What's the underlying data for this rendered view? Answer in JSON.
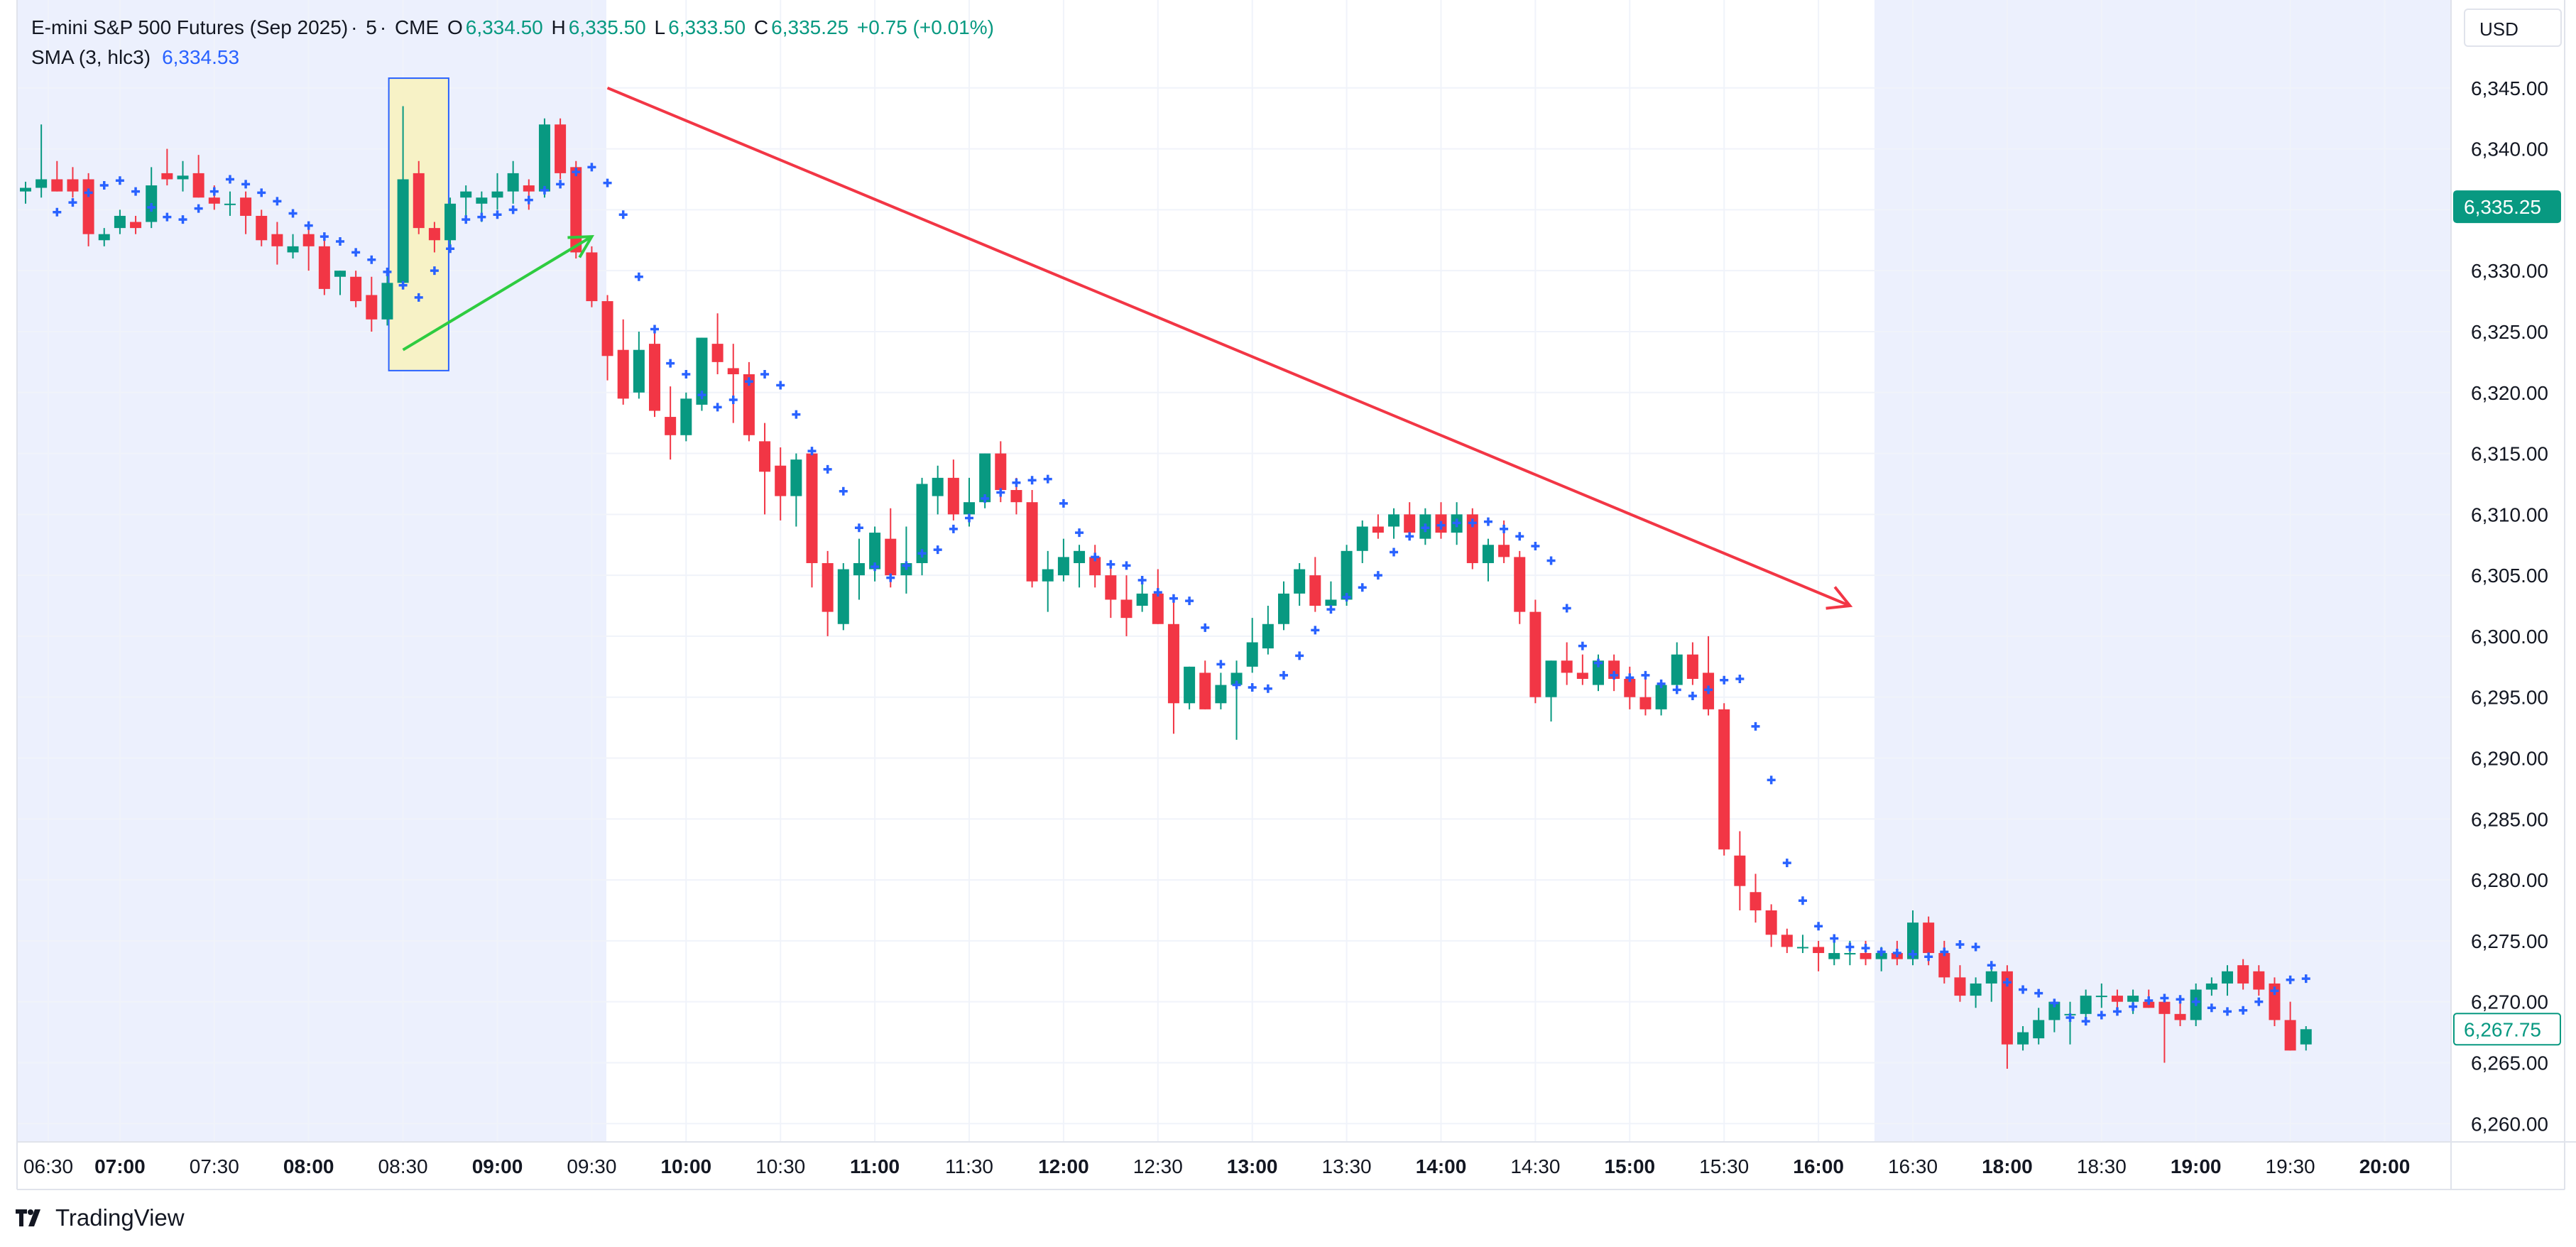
{
  "legend": {
    "symbol": "E-mini S&P 500 Futures (Sep 2025)",
    "interval": "5",
    "exchange": "CME",
    "open_label": "O",
    "open": "6,334.50",
    "high_label": "H",
    "high": "6,335.50",
    "low_label": "L",
    "low": "6,333.50",
    "close_label": "C",
    "close": "6,335.25",
    "change": "+0.75 (+0.01%)",
    "indicator": "SMA (3, hlc3)",
    "indicator_value": "6,334.53"
  },
  "currency": "USD",
  "brand": "TradingView",
  "colors": {
    "up": "#089981",
    "down": "#f23645",
    "sma": "#2962ff",
    "session_shade": "#ecf0fd",
    "box_fill": "#f7f2c6",
    "box_stroke": "#2962ff",
    "green_arrow": "#2ecc40",
    "red_arrow": "#f23645"
  },
  "price_tags": {
    "last": "6,335.25",
    "current": "6,267.75"
  },
  "chart_data": {
    "type": "candlestick",
    "y_axis": {
      "ticks": [
        "6,260.00",
        "6,265.00",
        "6,270.00",
        "6,275.00",
        "6,280.00",
        "6,285.00",
        "6,290.00",
        "6,295.00",
        "6,300.00",
        "6,305.00",
        "6,310.00",
        "6,315.00",
        "6,320.00",
        "6,325.00",
        "6,330.00",
        "6,335.00",
        "6,340.00",
        "6,345.00"
      ],
      "range": [
        6258.5,
        6350
      ]
    },
    "x_axis": {
      "ticks": [
        "06:30",
        "07:00",
        "07:30",
        "08:00",
        "08:30",
        "09:00",
        "09:30",
        "10:00",
        "10:30",
        "11:00",
        "11:30",
        "12:00",
        "12:30",
        "13:00",
        "13:30",
        "14:00",
        "14:30",
        "15:00",
        "15:30",
        "16:00",
        "16:30",
        "18:00",
        "18:30",
        "19:00",
        "19:30",
        "20:00"
      ],
      "bold": [
        "07:00",
        "08:00",
        "09:00",
        "10:00",
        "11:00",
        "12:00",
        "13:00",
        "14:00",
        "15:00",
        "16:00",
        "18:00",
        "19:00",
        "20:00"
      ]
    },
    "grid": true,
    "candles": [
      [
        6336.5,
        6337.3,
        6335.5,
        6336.8
      ],
      [
        6336.8,
        6342,
        6336,
        6337.5
      ],
      [
        6337.5,
        6339,
        6336.5,
        6336.5
      ],
      [
        6337.5,
        6338.5,
        6336,
        6336.5
      ],
      [
        6337.5,
        6338,
        6332,
        6333
      ],
      [
        6332.5,
        6333.5,
        6332,
        6333
      ],
      [
        6333.5,
        6335,
        6333,
        6334.5
      ],
      [
        6334,
        6334.5,
        6333,
        6333.5
      ],
      [
        6334,
        6338.5,
        6333.5,
        6337
      ],
      [
        6338,
        6340,
        6337,
        6337.5
      ],
      [
        6337.5,
        6339,
        6336.5,
        6337.8
      ],
      [
        6338,
        6339.5,
        6336,
        6336
      ],
      [
        6336,
        6337,
        6335,
        6335.5
      ],
      [
        6335.5,
        6336.5,
        6334.5,
        6335.5
      ],
      [
        6336,
        6336.5,
        6333,
        6334.5
      ],
      [
        6334.5,
        6335,
        6332,
        6332.5
      ],
      [
        6333,
        6334,
        6330.5,
        6332
      ],
      [
        6331.5,
        6333,
        6331,
        6332
      ],
      [
        6333,
        6334,
        6330,
        6332
      ],
      [
        6332,
        6332.5,
        6328,
        6328.5
      ],
      [
        6329.5,
        6330,
        6328,
        6330
      ],
      [
        6329.5,
        6330,
        6327,
        6327.5
      ],
      [
        6328,
        6329.5,
        6325,
        6326
      ],
      [
        6326,
        6330,
        6325.5,
        6329
      ],
      [
        6329,
        6343.5,
        6328.5,
        6337.5
      ],
      [
        6338,
        6339,
        6333,
        6333.5
      ],
      [
        6333.5,
        6334,
        6331.5,
        6332.5
      ],
      [
        6332.5,
        6336,
        6332,
        6335.5
      ],
      [
        6336,
        6337,
        6334.5,
        6336.5
      ],
      [
        6335.5,
        6336.5,
        6334,
        6336
      ],
      [
        6336,
        6338,
        6335,
        6336.5
      ],
      [
        6336.5,
        6339,
        6335.5,
        6338
      ],
      [
        6337,
        6337.5,
        6335,
        6336.5
      ],
      [
        6336.5,
        6342.5,
        6336,
        6342
      ],
      [
        6342,
        6342.5,
        6337.5,
        6338
      ],
      [
        6338.5,
        6339,
        6331,
        6331.5
      ],
      [
        6331.5,
        6332,
        6327,
        6327.5
      ],
      [
        6327.5,
        6328,
        6321,
        6323
      ],
      [
        6323.5,
        6326,
        6319,
        6319.5
      ],
      [
        6320,
        6325,
        6319.5,
        6323.5
      ],
      [
        6324,
        6325.5,
        6318,
        6318.5
      ],
      [
        6318,
        6320.5,
        6314.5,
        6316.5
      ],
      [
        6316.5,
        6320,
        6316,
        6319.5
      ],
      [
        6319,
        6324.5,
        6318.5,
        6324.5
      ],
      [
        6324,
        6326.5,
        6321.5,
        6322.5
      ],
      [
        6322,
        6324,
        6317.5,
        6321.5
      ],
      [
        6321.5,
        6322.5,
        6316,
        6316.5
      ],
      [
        6316,
        6317.5,
        6310,
        6313.5
      ],
      [
        6314,
        6315.5,
        6309.5,
        6311.5
      ],
      [
        6311.5,
        6315,
        6309,
        6314.5
      ],
      [
        6315,
        6315.5,
        6304,
        6306
      ],
      [
        6306,
        6307,
        6300,
        6302
      ],
      [
        6301,
        6306,
        6300.5,
        6305.5
      ],
      [
        6305,
        6308,
        6303,
        6306
      ],
      [
        6305.5,
        6309,
        6304.5,
        6308.5
      ],
      [
        6308,
        6310.5,
        6304,
        6305
      ],
      [
        6305,
        6309,
        6303.5,
        6306
      ],
      [
        6306,
        6313,
        6305,
        6312.5
      ],
      [
        6311.5,
        6314,
        6310,
        6313
      ],
      [
        6313,
        6314.5,
        6309.5,
        6310
      ],
      [
        6310,
        6313,
        6309,
        6311
      ],
      [
        6311,
        6315,
        6310.5,
        6315
      ],
      [
        6315,
        6316,
        6311,
        6312
      ],
      [
        6312,
        6313,
        6310,
        6311
      ],
      [
        6311,
        6312,
        6304,
        6304.5
      ],
      [
        6304.5,
        6307,
        6302,
        6305.5
      ],
      [
        6305,
        6308,
        6304.5,
        6306.5
      ],
      [
        6306,
        6307.5,
        6304,
        6307
      ],
      [
        6306.5,
        6307.5,
        6304,
        6305
      ],
      [
        6305,
        6306,
        6301.5,
        6303
      ],
      [
        6303,
        6305,
        6300,
        6301.5
      ],
      [
        6302.5,
        6304.5,
        6302,
        6303.5
      ],
      [
        6303.5,
        6305.5,
        6301,
        6301
      ],
      [
        6301,
        6303,
        6292,
        6294.5
      ],
      [
        6294.5,
        6297.5,
        6294,
        6297.5
      ],
      [
        6297,
        6298,
        6294,
        6294
      ],
      [
        6294.5,
        6297,
        6294,
        6296
      ],
      [
        6296,
        6298,
        6291.5,
        6297
      ],
      [
        6297.5,
        6301.5,
        6297,
        6299.5
      ],
      [
        6299,
        6302.5,
        6298.5,
        6301
      ],
      [
        6301,
        6304.5,
        6300.5,
        6303.5
      ],
      [
        6303.5,
        6306,
        6302.5,
        6305.5
      ],
      [
        6305,
        6306.5,
        6302,
        6302.5
      ],
      [
        6302.5,
        6304.5,
        6302,
        6303
      ],
      [
        6303,
        6307.5,
        6302.5,
        6307
      ],
      [
        6307,
        6309.5,
        6306,
        6309
      ],
      [
        6309,
        6310,
        6308,
        6308.5
      ],
      [
        6309,
        6310.5,
        6308,
        6310
      ],
      [
        6310,
        6311,
        6308.5,
        6308.5
      ],
      [
        6308,
        6310.5,
        6307.5,
        6310
      ],
      [
        6310,
        6311,
        6308,
        6308.5
      ],
      [
        6308.5,
        6311,
        6307.5,
        6310
      ],
      [
        6310,
        6310.5,
        6305.5,
        6306
      ],
      [
        6306,
        6308,
        6304.5,
        6307.5
      ],
      [
        6307.5,
        6309.5,
        6306,
        6306.5
      ],
      [
        6306.5,
        6307,
        6301,
        6302
      ],
      [
        6302,
        6303,
        6294.5,
        6295
      ],
      [
        6295,
        6298,
        6293,
        6298
      ],
      [
        6298,
        6299.5,
        6296,
        6297
      ],
      [
        6297,
        6298.5,
        6296,
        6296.5
      ],
      [
        6296,
        6298.5,
        6295.5,
        6298
      ],
      [
        6298,
        6298.5,
        6295.5,
        6296.5
      ],
      [
        6296.5,
        6297.5,
        6294,
        6295
      ],
      [
        6295,
        6296.5,
        6293.5,
        6294
      ],
      [
        6294,
        6296,
        6293.5,
        6296
      ],
      [
        6296,
        6299.5,
        6295.5,
        6298.5
      ],
      [
        6298.5,
        6299.5,
        6296,
        6296.5
      ],
      [
        6297,
        6300,
        6293.5,
        6294
      ],
      [
        6294,
        6294.5,
        6282,
        6282.5
      ],
      [
        6282,
        6284,
        6277.5,
        6279.5
      ],
      [
        6279,
        6280.5,
        6276.5,
        6277.5
      ],
      [
        6277.5,
        6278,
        6274.5,
        6275.5
      ],
      [
        6275.5,
        6276,
        6274,
        6274.5
      ],
      [
        6274.5,
        6275.5,
        6274,
        6274.5
      ],
      [
        6274.5,
        6275,
        6272.5,
        6274
      ],
      [
        6273.5,
        6275,
        6273,
        6274
      ],
      [
        6274,
        6275,
        6273,
        6274
      ],
      [
        6274,
        6275,
        6273,
        6273.5
      ],
      [
        6273.5,
        6274.5,
        6272.5,
        6274
      ],
      [
        6274,
        6275,
        6273,
        6273.5
      ],
      [
        6273.5,
        6277.5,
        6273,
        6276.5
      ],
      [
        6276.5,
        6277,
        6273,
        6274
      ],
      [
        6274,
        6275,
        6271.5,
        6272
      ],
      [
        6272,
        6273,
        6270,
        6270.5
      ],
      [
        6270.5,
        6272,
        6269.5,
        6271.5
      ],
      [
        6271.5,
        6273,
        6270,
        6272.5
      ],
      [
        6272.5,
        6273,
        6264.5,
        6266.5
      ],
      [
        6266.5,
        6268,
        6266,
        6267.5
      ],
      [
        6267,
        6269.5,
        6266.5,
        6268.5
      ],
      [
        6268.5,
        6270,
        6267.5,
        6270
      ],
      [
        6269,
        6270,
        6266.5,
        6269
      ],
      [
        6269,
        6271,
        6268.5,
        6270.5
      ],
      [
        6270.5,
        6271.5,
        6269.5,
        6270.5
      ],
      [
        6270.5,
        6271,
        6269.5,
        6270
      ],
      [
        6270,
        6271,
        6269,
        6270.5
      ],
      [
        6270,
        6271,
        6269.5,
        6269.5
      ],
      [
        6270,
        6270.5,
        6265,
        6269
      ],
      [
        6269,
        6270,
        6268,
        6268.5
      ],
      [
        6268.5,
        6271.5,
        6268,
        6271
      ],
      [
        6271,
        6272,
        6270.5,
        6271.5
      ],
      [
        6271.5,
        6273,
        6270.5,
        6272.5
      ],
      [
        6273,
        6273.5,
        6271,
        6271.5
      ],
      [
        6272.5,
        6273,
        6270.5,
        6271
      ],
      [
        6271.5,
        6272,
        6268,
        6268.5
      ],
      [
        6268.5,
        6270,
        6266,
        6266
      ],
      [
        6266.5,
        6268,
        6266,
        6267.75
      ]
    ],
    "sma": [
      6334.8,
      6335.6,
      6336.4,
      6337.0,
      6337.4,
      6336.5,
      6335.2,
      6334.4,
      6334.2,
      6335.1,
      6336.5,
      6337.5,
      6337.1,
      6336.4,
      6335.7,
      6334.7,
      6333.7,
      6332.8,
      6332.4,
      6331.5,
      6330.9,
      6329.9,
      6328.8,
      6327.8,
      6330.0,
      6331.8,
      6334.2,
      6334.4,
      6334.6,
      6335.0,
      6335.8,
      6336.6,
      6337.1,
      6338.1,
      6338.5,
      6337.2,
      6334.6,
      6329.5,
      6325.2,
      6322.4,
      6321.5,
      6319.8,
      6318.8,
      6319.4,
      6320.9,
      6321.5,
      6320.6,
      6318.2,
      6315.2,
      6313.7,
      6311.9,
      6308.9,
      6305.7,
      6304.8,
      6305.8,
      6306.8,
      6307.1,
      6308.8,
      6309.7,
      6311.3,
      6311.8,
      6312.6,
      6312.8,
      6312.9,
      6310.9,
      6308.5,
      6306.5,
      6305.9,
      6305.8,
      6304.6,
      6303.6,
      6303.1,
      6302.9,
      6300.7,
      6297.7,
      6296.0,
      6295.8,
      6295.7,
      6296.8,
      6298.4,
      6300.5,
      6302.2,
      6303.2,
      6304.0,
      6305.0,
      6306.9,
      6308.2,
      6308.9,
      6309.1,
      6309.3,
      6309.3,
      6309.4,
      6308.8,
      6308.2,
      6307.4,
      6306.2,
      6302.3,
      6299.2,
      6297.8,
      6296.8,
      6296.6,
      6296.8,
      6296.1,
      6295.6,
      6295.1,
      6295.6,
      6296.4,
      6296.5,
      6292.6,
      6288.2,
      6281.4,
      6278.3,
      6276.2,
      6275.2,
      6274.5,
      6274.4,
      6274.1,
      6274.0,
      6273.9,
      6273.7,
      6274.1,
      6274.7,
      6274.5,
      6273.0,
      6271.6,
      6271.0,
      6270.7,
      6269.9,
      6268.7,
      6268.4,
      6268.9,
      6269.2,
      6269.6,
      6270.1,
      6270.3,
      6270.2,
      6270.0,
      6269.5,
      6269.2,
      6269.3,
      6270.0,
      6270.9,
      6271.8,
      6271.9,
      6271.3,
      6269.7,
      6268.2,
      6267.4
    ]
  },
  "drawings": {
    "green_arrow": {
      "from": {
        "index": 24,
        "price": 6323.5
      },
      "to": {
        "index": 36,
        "price": 6332.8
      }
    },
    "red_arrow": {
      "from": {
        "index": 37,
        "price": 6345
      },
      "to": {
        "index": 116,
        "price": 6302.5
      }
    },
    "highlight_box": {
      "from_index": 24,
      "to_index": 26,
      "top": 6345.8,
      "bottom": 6321.8
    }
  }
}
